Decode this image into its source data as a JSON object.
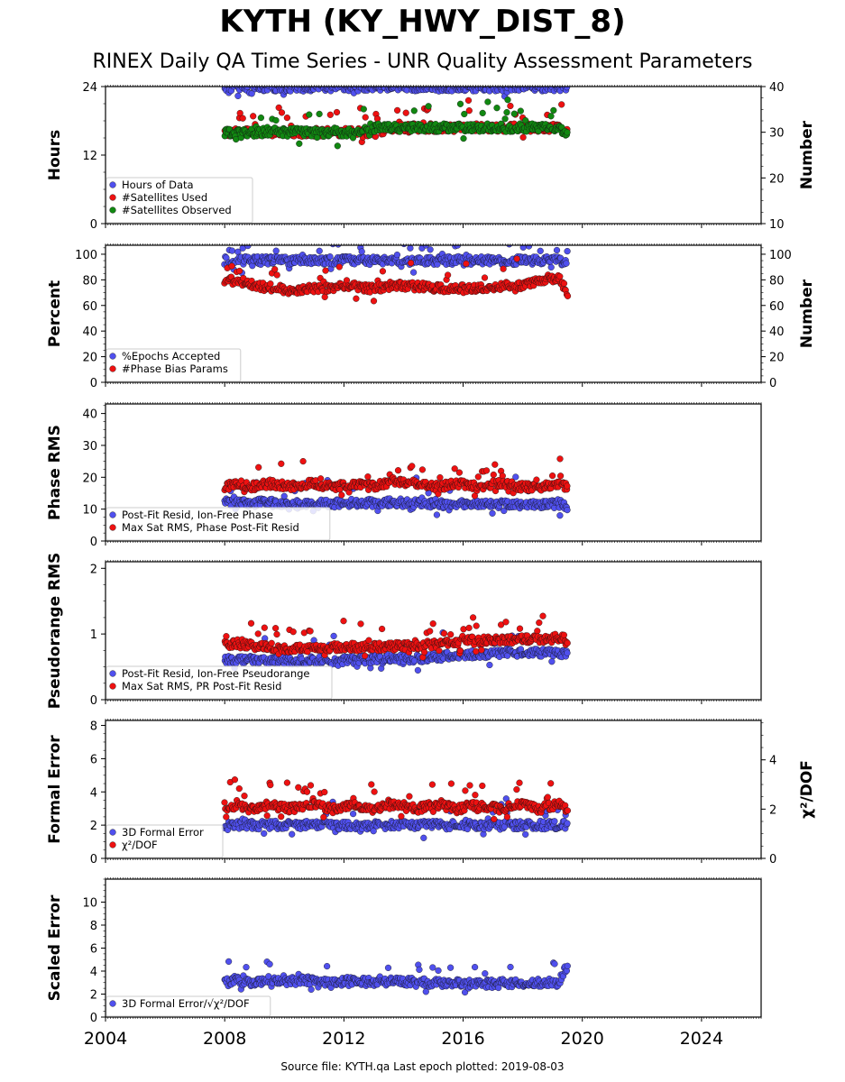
{
  "title": "KYTH (KY_HWY_DIST_8)",
  "subtitle": "RINEX Daily QA Time Series - UNR Quality Assessment Parameters",
  "footer": "Source file: KYTH.qa Last epoch plotted: 2019-08-03",
  "colors": {
    "blue": "#5050ee",
    "red": "#ee1111",
    "green": "#118811",
    "edge": "#111111"
  },
  "chart_data": [
    {
      "type": "scatter",
      "x_ticks": [
        "2004",
        "2008",
        "2012",
        "2016",
        "2020",
        "2024"
      ],
      "xlim": [
        2004,
        2026
      ],
      "ylabel": "Hours",
      "ylim": [
        0,
        24
      ],
      "y_ticks": [
        "0",
        "12",
        "24"
      ],
      "y2label": "Number",
      "y2lim": [
        10,
        40
      ],
      "y2_ticks": [
        "10",
        "20",
        "30",
        "40"
      ],
      "legend": "lower-left",
      "series": [
        {
          "name": "Hours of Data",
          "color": "blue",
          "axis": "left",
          "x": [
            2008.0,
            2008.4,
            2008.9,
            2009.5,
            2010.2,
            2010.9,
            2011.6,
            2012.3,
            2013.0,
            2013.7,
            2014.4,
            2015.1,
            2015.8,
            2016.5,
            2017.2,
            2017.9,
            2018.6,
            2019.2,
            2019.5
          ],
          "y": [
            23.9,
            23.9,
            23.9,
            23.9,
            23.9,
            23.9,
            23.9,
            23.9,
            23.9,
            23.9,
            23.9,
            23.9,
            23.9,
            23.9,
            23.9,
            23.9,
            23.9,
            23.9,
            23.9
          ]
        },
        {
          "name": "#Satellites Used",
          "color": "red",
          "axis": "right",
          "x": [
            2008.0,
            2008.4,
            2008.9,
            2009.5,
            2010.2,
            2010.9,
            2011.6,
            2012.3,
            2013.0,
            2013.7,
            2014.4,
            2015.1,
            2015.8,
            2016.5,
            2017.2,
            2017.9,
            2018.6,
            2019.2,
            2019.5
          ],
          "y": [
            30,
            30,
            30,
            30,
            30,
            30,
            30,
            30,
            30,
            31,
            31,
            31,
            31,
            31,
            31,
            31,
            31,
            31,
            30
          ]
        },
        {
          "name": "#Satellites Observed",
          "color": "green",
          "axis": "right",
          "x": [
            2008.0,
            2008.4,
            2008.9,
            2009.5,
            2010.2,
            2010.9,
            2011.6,
            2012.3,
            2013.0,
            2013.7,
            2014.4,
            2015.1,
            2015.8,
            2016.5,
            2017.2,
            2017.9,
            2018.6,
            2019.2,
            2019.5
          ],
          "y": [
            30,
            30,
            30,
            30,
            30,
            30,
            30,
            30,
            31,
            31,
            31,
            31,
            31,
            31,
            31,
            31,
            31,
            31,
            30
          ]
        }
      ]
    },
    {
      "type": "scatter",
      "x_ticks": [
        "2004",
        "2008",
        "2012",
        "2016",
        "2020",
        "2024"
      ],
      "xlim": [
        2004,
        2026
      ],
      "ylabel": "Percent",
      "ylim": [
        0,
        107
      ],
      "y_ticks": [
        "0",
        "20",
        "40",
        "60",
        "80",
        "100"
      ],
      "y2label": "Number",
      "y2lim": [
        0,
        107
      ],
      "y2_ticks": [
        "0",
        "20",
        "40",
        "60",
        "80",
        "100"
      ],
      "legend": "lower-left",
      "series": [
        {
          "name": "%Epochs Accepted",
          "color": "blue",
          "axis": "left",
          "x": [
            2008.0,
            2008.4,
            2008.9,
            2009.5,
            2010.2,
            2010.9,
            2011.6,
            2012.3,
            2013.0,
            2013.7,
            2014.4,
            2015.1,
            2015.8,
            2016.5,
            2017.2,
            2017.9,
            2018.6,
            2019.2,
            2019.5
          ],
          "y": [
            95,
            95,
            95,
            95,
            95,
            95,
            95,
            95,
            95,
            95,
            95,
            95,
            95,
            95,
            95,
            95,
            95,
            95,
            93
          ]
        },
        {
          "name": "#Phase Bias Params",
          "color": "red",
          "axis": "right",
          "x": [
            2008.0,
            2008.4,
            2008.9,
            2009.5,
            2010.2,
            2010.9,
            2011.6,
            2012.3,
            2013.0,
            2013.7,
            2014.4,
            2015.1,
            2015.8,
            2016.5,
            2017.2,
            2017.9,
            2018.6,
            2019.2,
            2019.5
          ],
          "y": [
            78,
            80,
            76,
            74,
            72,
            73,
            74,
            75,
            73,
            76,
            75,
            74,
            73,
            74,
            75,
            76,
            80,
            82,
            70
          ]
        }
      ]
    },
    {
      "type": "scatter",
      "x_ticks": [
        "2004",
        "2008",
        "2012",
        "2016",
        "2020",
        "2024"
      ],
      "xlim": [
        2004,
        2026
      ],
      "ylabel": "Phase RMS",
      "ylim": [
        0,
        43
      ],
      "y_ticks": [
        "0",
        "10",
        "20",
        "30",
        "40"
      ],
      "legend": "lower-left",
      "series": [
        {
          "name": "Post-Fit Resid, Ion-Free Phase",
          "color": "blue",
          "axis": "left",
          "x": [
            2008.0,
            2008.4,
            2008.9,
            2009.5,
            2010.2,
            2010.9,
            2011.6,
            2012.3,
            2013.0,
            2013.7,
            2014.4,
            2015.1,
            2015.8,
            2016.5,
            2017.2,
            2017.9,
            2018.6,
            2019.2,
            2019.5
          ],
          "y": [
            12,
            12,
            12,
            12,
            11.5,
            11.5,
            12,
            12,
            12,
            12,
            12,
            11.5,
            11.5,
            11.5,
            11.5,
            11.5,
            11.5,
            11.5,
            11
          ]
        },
        {
          "name": "Max Sat RMS, Phase Post-Fit Resid",
          "color": "red",
          "axis": "left",
          "x": [
            2008.0,
            2008.4,
            2008.9,
            2009.5,
            2010.2,
            2010.9,
            2011.6,
            2012.3,
            2013.0,
            2013.7,
            2014.4,
            2015.1,
            2015.8,
            2016.5,
            2017.2,
            2017.9,
            2018.6,
            2019.2,
            2019.5
          ],
          "y": [
            17,
            18,
            17,
            18,
            17,
            18,
            17,
            18,
            17,
            19,
            18,
            17,
            18,
            17,
            18,
            17,
            17,
            18,
            17
          ]
        }
      ]
    },
    {
      "type": "scatter",
      "x_ticks": [
        "2004",
        "2008",
        "2012",
        "2016",
        "2020",
        "2024"
      ],
      "xlim": [
        2004,
        2026
      ],
      "ylabel": "Pseudorange RMS",
      "ylim": [
        0,
        2.1
      ],
      "y_ticks": [
        "0",
        "1",
        "2"
      ],
      "legend": "lower-left",
      "series": [
        {
          "name": "Post-Fit Resid, Ion-Free Pseudorange",
          "color": "blue",
          "axis": "left",
          "x": [
            2008.0,
            2008.4,
            2008.9,
            2009.5,
            2010.2,
            2010.9,
            2011.6,
            2012.3,
            2013.0,
            2013.7,
            2014.4,
            2015.1,
            2015.8,
            2016.5,
            2017.2,
            2017.9,
            2018.6,
            2019.2,
            2019.5
          ],
          "y": [
            0.6,
            0.6,
            0.6,
            0.6,
            0.6,
            0.6,
            0.6,
            0.6,
            0.62,
            0.62,
            0.62,
            0.65,
            0.68,
            0.7,
            0.7,
            0.72,
            0.72,
            0.72,
            0.7
          ]
        },
        {
          "name": "Max Sat RMS, PR Post-Fit Resid",
          "color": "red",
          "axis": "left",
          "x": [
            2008.0,
            2008.4,
            2008.9,
            2009.5,
            2010.2,
            2010.9,
            2011.6,
            2012.3,
            2013.0,
            2013.7,
            2014.4,
            2015.1,
            2015.8,
            2016.5,
            2017.2,
            2017.9,
            2018.6,
            2019.2,
            2019.5
          ],
          "y": [
            0.85,
            0.85,
            0.82,
            0.8,
            0.78,
            0.78,
            0.8,
            0.8,
            0.8,
            0.82,
            0.82,
            0.85,
            0.88,
            0.9,
            0.9,
            0.92,
            0.92,
            0.95,
            0.9
          ]
        }
      ]
    },
    {
      "type": "scatter",
      "x_ticks": [
        "2004",
        "2008",
        "2012",
        "2016",
        "2020",
        "2024"
      ],
      "xlim": [
        2004,
        2026
      ],
      "ylabel": "Formal Error",
      "ylim": [
        0,
        8.3
      ],
      "y_ticks": [
        "0",
        "2",
        "4",
        "6",
        "8"
      ],
      "y2label": "χ²/DOF",
      "y2lim": [
        0,
        5.6
      ],
      "y2_ticks": [
        "0",
        "2",
        "4"
      ],
      "legend": "lower-left",
      "series": [
        {
          "name": "3D Formal Error",
          "color": "blue",
          "axis": "left",
          "x": [
            2008.0,
            2008.4,
            2008.9,
            2009.5,
            2010.2,
            2010.9,
            2011.6,
            2012.3,
            2013.0,
            2013.7,
            2014.4,
            2015.1,
            2015.8,
            2016.5,
            2017.2,
            2017.9,
            2018.6,
            2019.2,
            2019.5
          ],
          "y": [
            2.0,
            2.0,
            2.0,
            2.0,
            2.0,
            2.0,
            2.0,
            2.0,
            2.0,
            2.0,
            2.0,
            2.0,
            2.0,
            2.0,
            2.0,
            2.0,
            2.0,
            2.0,
            2.0
          ]
        },
        {
          "name": "χ²/DOF",
          "color": "red",
          "axis": "right",
          "x": [
            2008.0,
            2008.4,
            2008.9,
            2009.5,
            2010.2,
            2010.9,
            2011.6,
            2012.3,
            2013.0,
            2013.7,
            2014.4,
            2015.1,
            2015.8,
            2016.5,
            2017.2,
            2017.9,
            2018.6,
            2019.2,
            2019.5
          ],
          "y": [
            2.0,
            2.2,
            2.0,
            2.2,
            2.0,
            2.2,
            2.0,
            2.2,
            2.0,
            2.2,
            2.0,
            2.2,
            2.0,
            2.2,
            2.0,
            2.2,
            2.0,
            2.2,
            2.0
          ]
        }
      ]
    },
    {
      "type": "scatter",
      "x_ticks": [
        "2004",
        "2008",
        "2012",
        "2016",
        "2020",
        "2024"
      ],
      "xlim": [
        2004,
        2026
      ],
      "ylabel": "Scaled Error",
      "ylim": [
        0,
        12
      ],
      "y_ticks": [
        "0",
        "2",
        "4",
        "6",
        "8",
        "10"
      ],
      "legend": "lower-left",
      "series": [
        {
          "name": "3D Formal Error/√χ²/DOF",
          "color": "blue",
          "axis": "left",
          "x": [
            2008.0,
            2008.4,
            2008.9,
            2009.5,
            2010.2,
            2010.9,
            2011.6,
            2012.3,
            2013.0,
            2013.7,
            2014.4,
            2015.1,
            2015.8,
            2016.5,
            2017.2,
            2017.9,
            2018.6,
            2019.2,
            2019.5
          ],
          "y": [
            3.0,
            3.2,
            3.0,
            3.2,
            3.1,
            3.2,
            3.0,
            3.2,
            3.0,
            3.2,
            3.0,
            3.0,
            3.0,
            2.9,
            2.9,
            2.9,
            3.0,
            3.0,
            4.5
          ]
        }
      ]
    }
  ]
}
